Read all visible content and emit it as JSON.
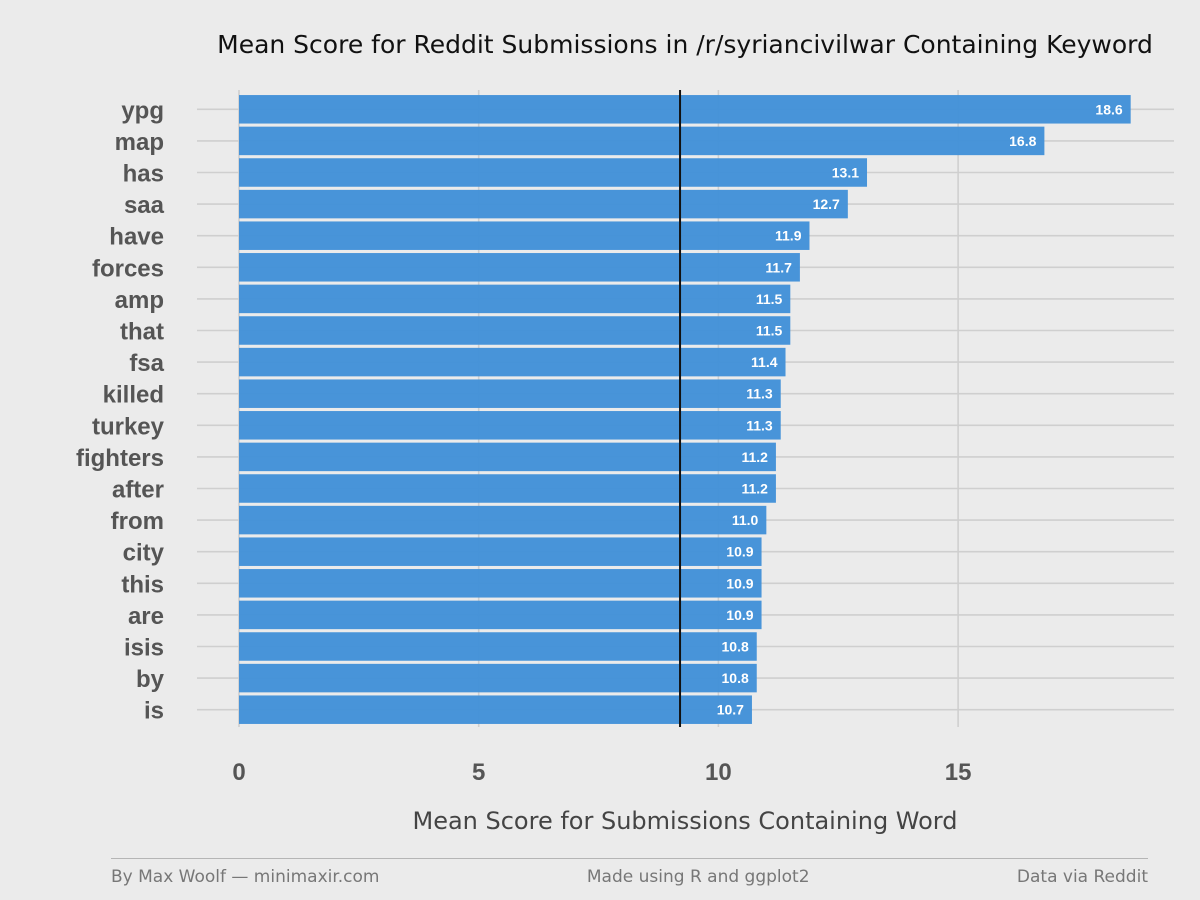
{
  "chart_data": {
    "type": "bar",
    "orientation": "horizontal",
    "title": "Mean Score for Reddit Submissions in /r/syriancivilwar Containing Keyword",
    "xlabel": "Mean Score for Submissions Containing Word",
    "ylabel": "",
    "categories": [
      "ypg",
      "map",
      "has",
      "saa",
      "have",
      "forces",
      "amp",
      "that",
      "fsa",
      "killed",
      "turkey",
      "fighters",
      "after",
      "from",
      "city",
      "this",
      "are",
      "isis",
      "by",
      "is"
    ],
    "values": [
      18.6,
      16.8,
      13.1,
      12.7,
      11.9,
      11.7,
      11.5,
      11.5,
      11.4,
      11.3,
      11.3,
      11.2,
      11.2,
      11.0,
      10.9,
      10.9,
      10.9,
      10.8,
      10.8,
      10.7
    ],
    "data_labels": [
      "18.6",
      "16.8",
      "13.1",
      "12.7",
      "11.9",
      "11.7",
      "11.5",
      "11.5",
      "11.4",
      "11.3",
      "11.3",
      "11.2",
      "11.2",
      "11.0",
      "10.9",
      "10.9",
      "10.9",
      "10.8",
      "10.8",
      "10.7"
    ],
    "xticks": [
      0,
      5,
      10,
      15
    ],
    "xtick_labels": [
      "0",
      "5",
      "10",
      "15"
    ],
    "xlim": [
      -0.9,
      19.1
    ],
    "reference_line": 9.2,
    "grid": true,
    "bar_color": "#3f8fd8",
    "reference_line_color": "#111111"
  },
  "footer": {
    "left": "By Max Woolf — minimaxir.com",
    "center": "Made using R and ggplot2",
    "right": "Data via Reddit"
  }
}
